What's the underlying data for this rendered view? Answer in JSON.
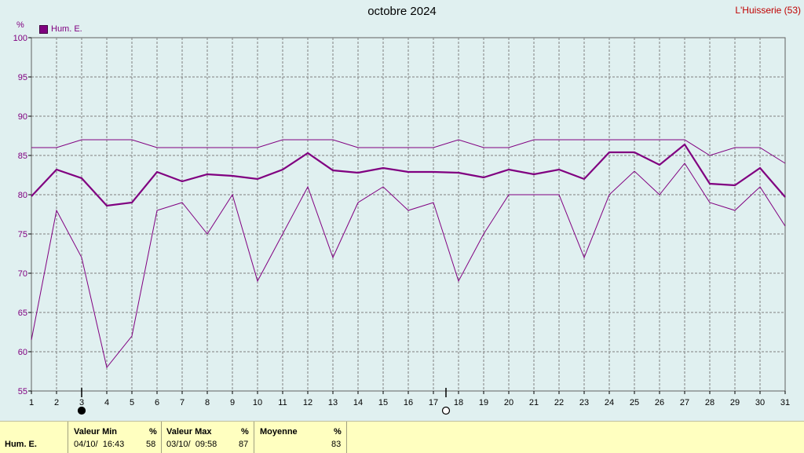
{
  "header": {
    "title": "octobre 2024",
    "station": "L'Huisserie (53)",
    "unit": "%",
    "legend": "Hum. E."
  },
  "colors": {
    "background": "#e0f0f0",
    "series": "#800080",
    "grid": "#808080",
    "stats_background": "#ffffc0"
  },
  "chart_data": {
    "type": "line",
    "title": "octobre 2024",
    "ylabel": "%",
    "x": [
      1,
      2,
      3,
      4,
      5,
      6,
      7,
      8,
      9,
      10,
      11,
      12,
      13,
      14,
      15,
      16,
      17,
      18,
      19,
      20,
      21,
      22,
      23,
      24,
      25,
      26,
      27,
      28,
      29,
      30,
      31
    ],
    "xlim": [
      1,
      31
    ],
    "ylim": [
      55,
      100
    ],
    "yticks": [
      55,
      60,
      65,
      70,
      75,
      80,
      85,
      90,
      95,
      100
    ],
    "grid": true,
    "legend_position": "top-left",
    "series": [
      {
        "name": "Hum. E.",
        "role": "average",
        "values": [
          79.8,
          83.2,
          82.1,
          78.6,
          79,
          82.9,
          81.7,
          82.6,
          82.4,
          82,
          83.2,
          85.3,
          83.1,
          82.8,
          83.4,
          82.9,
          82.9,
          82.8,
          82.2,
          83.2,
          82.6,
          83.2,
          82,
          85.4,
          85.4,
          83.8,
          86.4,
          81.4,
          81.2,
          83.4,
          79.7
        ]
      },
      {
        "role": "maximum",
        "values": [
          86,
          86,
          87,
          87,
          87,
          86,
          86,
          86,
          86,
          86,
          87,
          87,
          87,
          86,
          86,
          86,
          86,
          87,
          86,
          86,
          87,
          87,
          87,
          87,
          87,
          87,
          87,
          85,
          86,
          86,
          84
        ]
      },
      {
        "role": "minimum",
        "values": [
          61.5,
          78,
          72,
          58,
          62,
          78,
          79,
          75,
          80,
          69,
          75,
          81,
          72,
          79,
          81,
          78,
          79,
          69,
          75,
          80,
          80,
          80,
          72,
          80,
          83,
          80,
          84,
          79,
          78,
          81,
          76
        ]
      }
    ],
    "markers": [
      {
        "day": 3,
        "type": "new-moon"
      },
      {
        "day": 17.5,
        "type": "full-moon"
      }
    ]
  },
  "stats": {
    "row_label": "Hum. E.",
    "min": {
      "label": "Valeur Min",
      "unit": "%",
      "when": "04/10/  16:43",
      "value": "58"
    },
    "max": {
      "label": "Valeur Max",
      "unit": "%",
      "when": "03/10/  09:58",
      "value": "87"
    },
    "avg": {
      "label": "Moyenne",
      "unit": "%",
      "value": "83"
    }
  }
}
